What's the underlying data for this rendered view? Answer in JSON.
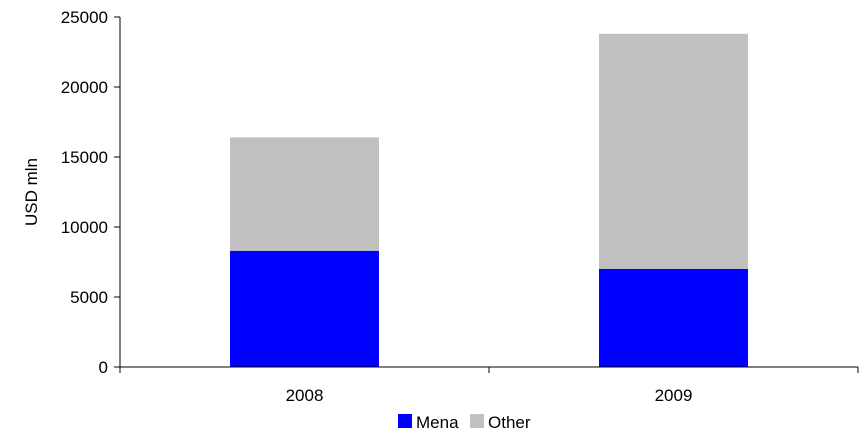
{
  "chart_data": {
    "type": "bar",
    "stacked": true,
    "categories": [
      "2008",
      "2009"
    ],
    "series": [
      {
        "name": "Mena",
        "color": "#0000ff",
        "values": [
          8300,
          7000
        ]
      },
      {
        "name": "Other",
        "color": "#c0c0c0",
        "values": [
          8100,
          16800
        ]
      }
    ],
    "title": "",
    "xlabel": "",
    "ylabel": "USD mln",
    "ylim": [
      0,
      25000
    ],
    "yticks": [
      0,
      5000,
      10000,
      15000,
      20000,
      25000
    ],
    "grid": false,
    "legend": "bottom"
  }
}
